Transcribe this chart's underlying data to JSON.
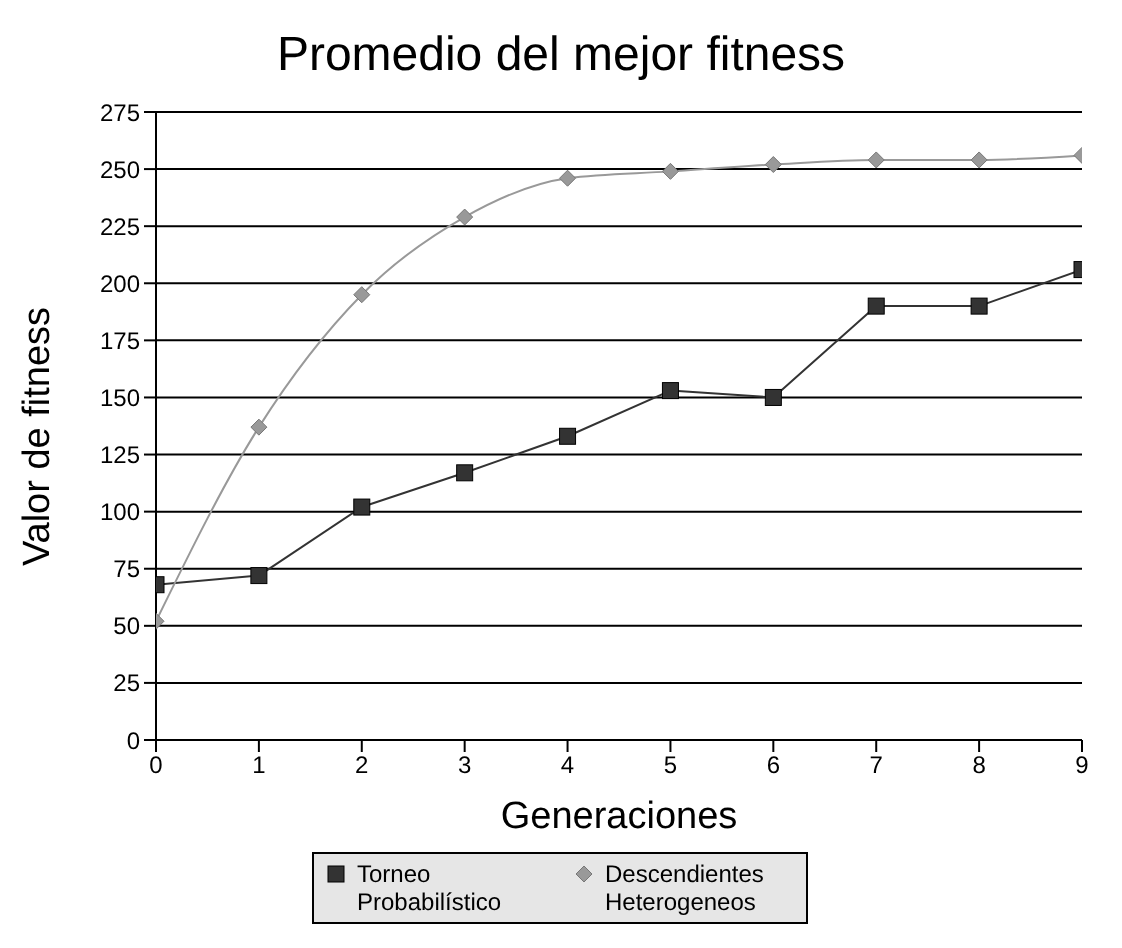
{
  "chart_data": {
    "type": "line",
    "title": "Promedio del mejor fitness",
    "xlabel": "Generaciones",
    "ylabel": "Valor de fitness",
    "x": [
      0,
      1,
      2,
      3,
      4,
      5,
      6,
      7,
      8,
      9
    ],
    "xlim": [
      0,
      9
    ],
    "xticks": [
      0,
      1,
      2,
      3,
      4,
      5,
      6,
      7,
      8,
      9
    ],
    "ylim": [
      0,
      275
    ],
    "yticks": [
      0,
      25,
      50,
      75,
      100,
      125,
      150,
      175,
      200,
      225,
      250,
      275
    ],
    "grid": "y",
    "legend": "bottom",
    "series": [
      {
        "name": "Torneo Probabilístico",
        "color": "#333333",
        "marker": "square",
        "values": [
          68,
          72,
          102,
          117,
          133,
          153,
          150,
          190,
          190,
          206
        ]
      },
      {
        "name": "Descendientes Heterogeneos",
        "color": "#999999",
        "marker": "diamond",
        "values": [
          52,
          137,
          195,
          229,
          246,
          249,
          252,
          254,
          254,
          256
        ]
      }
    ]
  }
}
